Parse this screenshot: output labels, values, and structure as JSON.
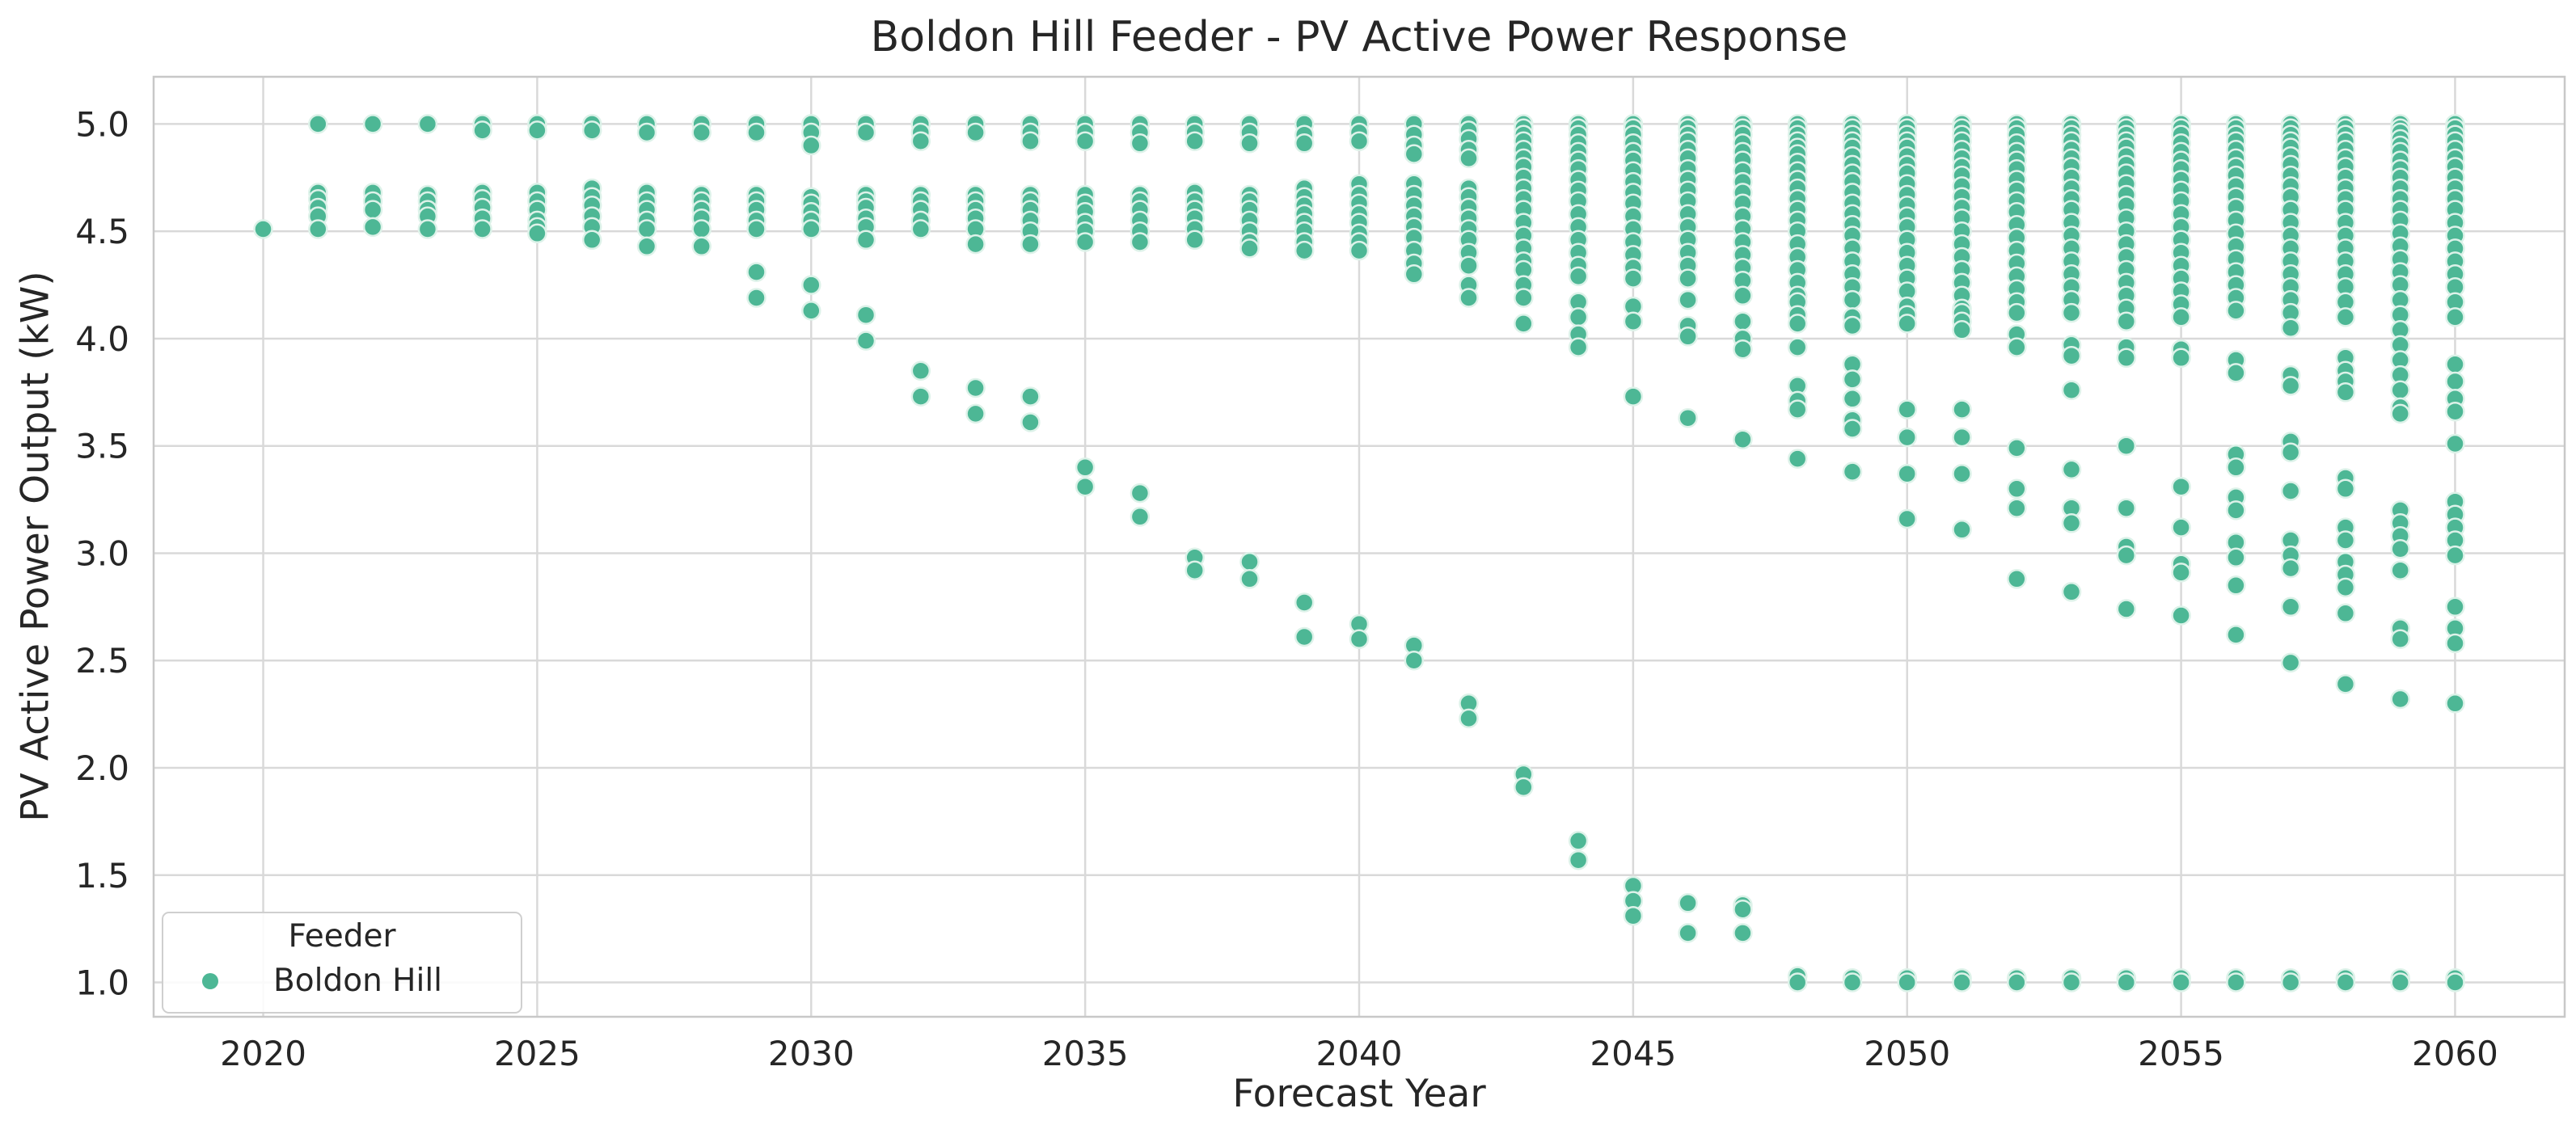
{
  "title": "Boldon Hill Feeder - PV Active Power Response",
  "axes": {
    "xlabel": "Forecast Year",
    "ylabel": "PV Active Power Output (kW)"
  },
  "legend": {
    "title": "Feeder",
    "items": [
      {
        "label": "Boldon Hill",
        "color": "#4db795"
      }
    ]
  },
  "colors": {
    "point": "#4db795",
    "point_edge": "#ddf2e9",
    "grid": "#d9d9d9",
    "spine": "#c8c8c8",
    "text": "#262626"
  },
  "chart_data": {
    "type": "scatter",
    "title": "Boldon Hill Feeder - PV Active Power Response",
    "xlabel": "Forecast Year",
    "ylabel": "PV Active Power Output (kW)",
    "xlim": [
      2018,
      2062
    ],
    "ylim": [
      0.84,
      5.22
    ],
    "x_ticks": [
      2020,
      2025,
      2030,
      2035,
      2040,
      2045,
      2050,
      2055,
      2060
    ],
    "y_ticks": [
      1.0,
      1.5,
      2.0,
      2.5,
      3.0,
      3.5,
      4.0,
      4.5,
      5.0
    ],
    "grid": true,
    "legend_position": "lower left",
    "series": [
      {
        "name": "Boldon Hill",
        "color": "#4db795",
        "points_by_year": [
          [
            2020,
            [
              4.51
            ]
          ],
          [
            2021,
            [
              5.0,
              4.68,
              4.65,
              4.61,
              4.57,
              4.51
            ]
          ],
          [
            2022,
            [
              5.0,
              4.68,
              4.64,
              4.6,
              4.52
            ]
          ],
          [
            2023,
            [
              5.0,
              4.67,
              4.64,
              4.6,
              4.57,
              4.51
            ]
          ],
          [
            2024,
            [
              5.0,
              4.97,
              4.68,
              4.65,
              4.61,
              4.56,
              4.51
            ]
          ],
          [
            2025,
            [
              5.0,
              4.97,
              4.68,
              4.64,
              4.6,
              4.55,
              4.52,
              4.49
            ]
          ],
          [
            2026,
            [
              5.0,
              4.97,
              4.7,
              4.66,
              4.62,
              4.57,
              4.52,
              4.46
            ]
          ],
          [
            2027,
            [
              5.0,
              4.96,
              4.68,
              4.64,
              4.6,
              4.55,
              4.51,
              4.43
            ]
          ],
          [
            2028,
            [
              5.0,
              4.96,
              4.67,
              4.64,
              4.6,
              4.56,
              4.51,
              4.43
            ]
          ],
          [
            2029,
            [
              5.0,
              4.96,
              4.67,
              4.64,
              4.6,
              4.55,
              4.51,
              4.31,
              4.19
            ]
          ],
          [
            2030,
            [
              5.0,
              4.96,
              4.9,
              4.66,
              4.63,
              4.59,
              4.55,
              4.51,
              4.25,
              4.13
            ]
          ],
          [
            2031,
            [
              5.0,
              4.96,
              4.67,
              4.64,
              4.61,
              4.56,
              4.52,
              4.46,
              4.11,
              3.99
            ]
          ],
          [
            2032,
            [
              5.0,
              4.96,
              4.92,
              4.67,
              4.64,
              4.6,
              4.55,
              4.51,
              3.85,
              3.73
            ]
          ],
          [
            2033,
            [
              5.0,
              4.96,
              4.67,
              4.64,
              4.6,
              4.56,
              4.51,
              4.44,
              3.77,
              3.65
            ]
          ],
          [
            2034,
            [
              5.0,
              4.96,
              4.92,
              4.67,
              4.64,
              4.6,
              4.55,
              4.5,
              4.44,
              3.73,
              3.61
            ]
          ],
          [
            2035,
            [
              5.0,
              4.96,
              4.92,
              4.67,
              4.63,
              4.59,
              4.54,
              4.5,
              4.45,
              3.4,
              3.31
            ]
          ],
          [
            2036,
            [
              5.0,
              4.96,
              4.91,
              4.67,
              4.64,
              4.6,
              4.55,
              4.5,
              4.45,
              3.28,
              3.17
            ]
          ],
          [
            2037,
            [
              5.0,
              4.96,
              4.92,
              4.68,
              4.64,
              4.6,
              4.56,
              4.51,
              4.46,
              2.98,
              2.92
            ]
          ],
          [
            2038,
            [
              5.0,
              4.96,
              4.91,
              4.67,
              4.64,
              4.6,
              4.55,
              4.5,
              4.45,
              4.42,
              2.96,
              2.88
            ]
          ],
          [
            2039,
            [
              5.0,
              4.95,
              4.91,
              4.7,
              4.66,
              4.62,
              4.58,
              4.54,
              4.5,
              4.45,
              4.41,
              2.77,
              2.61
            ]
          ],
          [
            2040,
            [
              5.0,
              4.96,
              4.92,
              4.72,
              4.67,
              4.63,
              4.58,
              4.54,
              4.49,
              4.45,
              4.41,
              2.67,
              2.6
            ]
          ],
          [
            2041,
            [
              5.0,
              4.95,
              4.9,
              4.86,
              4.72,
              4.67,
              4.62,
              4.57,
              4.52,
              4.47,
              4.41,
              4.35,
              4.3,
              2.57,
              2.5
            ]
          ],
          [
            2042,
            [
              5.0,
              4.97,
              4.93,
              4.88,
              4.84,
              4.7,
              4.66,
              4.61,
              4.56,
              4.51,
              4.46,
              4.4,
              4.34,
              4.25,
              4.19,
              2.3,
              2.23
            ]
          ],
          [
            2043,
            [
              5.0,
              4.98,
              4.95,
              4.92,
              4.88,
              4.84,
              4.8,
              4.75,
              4.7,
              4.65,
              4.6,
              4.54,
              4.48,
              4.42,
              4.36,
              4.32,
              4.25,
              4.19,
              4.07,
              1.97,
              1.91
            ]
          ],
          [
            2044,
            [
              5.0,
              4.98,
              4.95,
              4.91,
              4.87,
              4.83,
              4.79,
              4.74,
              4.69,
              4.64,
              4.58,
              4.52,
              4.46,
              4.4,
              4.34,
              4.29,
              4.17,
              4.1,
              4.02,
              3.96,
              1.66,
              1.57
            ]
          ],
          [
            2045,
            [
              5.0,
              4.98,
              4.95,
              4.91,
              4.87,
              4.83,
              4.78,
              4.73,
              4.68,
              4.63,
              4.57,
              4.51,
              4.45,
              4.39,
              4.33,
              4.28,
              4.15,
              4.08,
              3.73,
              1.45,
              1.38,
              1.31
            ]
          ],
          [
            2046,
            [
              5.0,
              4.98,
              4.95,
              4.92,
              4.88,
              4.84,
              4.79,
              4.74,
              4.69,
              4.64,
              4.58,
              4.52,
              4.46,
              4.4,
              4.34,
              4.28,
              4.18,
              4.06,
              4.01,
              3.63,
              1.37,
              1.23
            ]
          ],
          [
            2047,
            [
              5.0,
              4.98,
              4.95,
              4.91,
              4.87,
              4.83,
              4.78,
              4.73,
              4.68,
              4.63,
              4.57,
              4.51,
              4.45,
              4.39,
              4.33,
              4.27,
              4.2,
              4.08,
              4.0,
              3.95,
              3.53,
              1.36,
              1.34,
              1.23
            ]
          ],
          [
            2048,
            [
              5.0,
              4.98,
              4.95,
              4.92,
              4.89,
              4.86,
              4.82,
              4.78,
              4.74,
              4.7,
              4.65,
              4.6,
              4.55,
              4.5,
              4.44,
              4.38,
              4.32,
              4.26,
              4.2,
              4.17,
              4.11,
              4.07,
              3.96,
              3.78,
              3.71,
              3.67,
              3.44,
              1.03,
              1.0
            ]
          ],
          [
            2049,
            [
              5.0,
              4.98,
              4.95,
              4.92,
              4.89,
              4.85,
              4.81,
              4.77,
              4.73,
              4.68,
              4.63,
              4.58,
              4.53,
              4.48,
              4.42,
              4.36,
              4.3,
              4.24,
              4.18,
              4.1,
              4.06,
              3.88,
              3.81,
              3.72,
              3.62,
              3.58,
              3.38,
              1.02,
              1.0
            ]
          ],
          [
            2050,
            [
              5.0,
              4.98,
              4.95,
              4.92,
              4.89,
              4.85,
              4.81,
              4.77,
              4.72,
              4.67,
              4.62,
              4.57,
              4.52,
              4.46,
              4.4,
              4.34,
              4.28,
              4.22,
              4.15,
              4.11,
              4.07,
              3.67,
              3.54,
              3.37,
              3.16,
              1.02,
              1.0
            ]
          ],
          [
            2051,
            [
              5.0,
              4.98,
              4.95,
              4.92,
              4.88,
              4.84,
              4.8,
              4.76,
              4.71,
              4.66,
              4.61,
              4.56,
              4.5,
              4.44,
              4.38,
              4.32,
              4.26,
              4.2,
              4.14,
              4.12,
              4.08,
              4.04,
              3.67,
              3.54,
              3.37,
              3.11,
              1.02,
              1.0
            ]
          ],
          [
            2052,
            [
              5.0,
              4.98,
              4.95,
              4.91,
              4.87,
              4.83,
              4.79,
              4.74,
              4.69,
              4.64,
              4.59,
              4.53,
              4.47,
              4.41,
              4.35,
              4.29,
              4.23,
              4.17,
              4.12,
              4.02,
              3.96,
              3.49,
              3.3,
              3.21,
              2.88,
              1.02,
              1.0
            ]
          ],
          [
            2053,
            [
              5.0,
              4.98,
              4.95,
              4.92,
              4.88,
              4.84,
              4.8,
              4.75,
              4.7,
              4.65,
              4.6,
              4.54,
              4.48,
              4.42,
              4.36,
              4.3,
              4.24,
              4.18,
              4.12,
              3.97,
              3.92,
              3.76,
              3.39,
              3.21,
              3.14,
              2.82,
              1.02,
              1.0
            ]
          ],
          [
            2054,
            [
              5.0,
              4.98,
              4.95,
              4.92,
              4.89,
              4.85,
              4.81,
              4.77,
              4.72,
              4.67,
              4.62,
              4.56,
              4.5,
              4.44,
              4.38,
              4.32,
              4.26,
              4.2,
              4.14,
              4.08,
              3.96,
              3.91,
              3.5,
              3.21,
              3.03,
              2.99,
              2.74,
              1.02,
              1.0
            ]
          ],
          [
            2055,
            [
              5.0,
              4.98,
              4.95,
              4.91,
              4.87,
              4.83,
              4.79,
              4.74,
              4.69,
              4.64,
              4.58,
              4.52,
              4.46,
              4.4,
              4.34,
              4.28,
              4.22,
              4.16,
              4.1,
              3.95,
              3.91,
              3.31,
              3.12,
              2.95,
              2.91,
              2.71,
              1.02,
              1.0
            ]
          ],
          [
            2056,
            [
              5.0,
              4.98,
              4.95,
              4.92,
              4.88,
              4.84,
              4.8,
              4.76,
              4.71,
              4.66,
              4.61,
              4.55,
              4.49,
              4.43,
              4.37,
              4.31,
              4.25,
              4.19,
              4.13,
              3.9,
              3.84,
              3.46,
              3.4,
              3.26,
              3.2,
              3.05,
              2.98,
              2.85,
              2.62,
              1.02,
              1.0
            ]
          ],
          [
            2057,
            [
              5.0,
              4.98,
              4.95,
              4.92,
              4.89,
              4.85,
              4.81,
              4.76,
              4.71,
              4.66,
              4.6,
              4.54,
              4.48,
              4.42,
              4.36,
              4.3,
              4.24,
              4.18,
              4.12,
              4.05,
              3.83,
              3.78,
              3.52,
              3.47,
              3.29,
              3.06,
              2.99,
              2.93,
              2.75,
              2.49,
              1.02,
              1.0
            ]
          ],
          [
            2058,
            [
              5.0,
              4.98,
              4.95,
              4.92,
              4.88,
              4.84,
              4.8,
              4.75,
              4.7,
              4.65,
              4.6,
              4.54,
              4.48,
              4.42,
              4.36,
              4.3,
              4.24,
              4.17,
              4.1,
              3.91,
              3.85,
              3.8,
              3.75,
              3.35,
              3.3,
              3.12,
              3.06,
              2.96,
              2.9,
              2.84,
              2.72,
              2.39,
              1.02,
              1.0
            ]
          ],
          [
            2059,
            [
              5.0,
              4.98,
              4.96,
              4.93,
              4.9,
              4.87,
              4.83,
              4.79,
              4.75,
              4.7,
              4.65,
              4.6,
              4.55,
              4.49,
              4.43,
              4.37,
              4.31,
              4.25,
              4.18,
              4.11,
              4.04,
              3.97,
              3.9,
              3.83,
              3.76,
              3.68,
              3.65,
              3.2,
              3.14,
              3.08,
              3.02,
              2.92,
              2.65,
              2.6,
              2.32,
              1.02,
              1.0
            ]
          ],
          [
            2060,
            [
              5.0,
              4.98,
              4.95,
              4.92,
              4.88,
              4.84,
              4.8,
              4.75,
              4.7,
              4.65,
              4.6,
              4.54,
              4.48,
              4.42,
              4.36,
              4.3,
              4.24,
              4.17,
              4.1,
              3.88,
              3.8,
              3.72,
              3.66,
              3.51,
              3.24,
              3.18,
              3.12,
              3.06,
              2.99,
              2.75,
              2.65,
              2.58,
              2.3,
              1.02,
              1.0
            ]
          ]
        ]
      }
    ]
  }
}
